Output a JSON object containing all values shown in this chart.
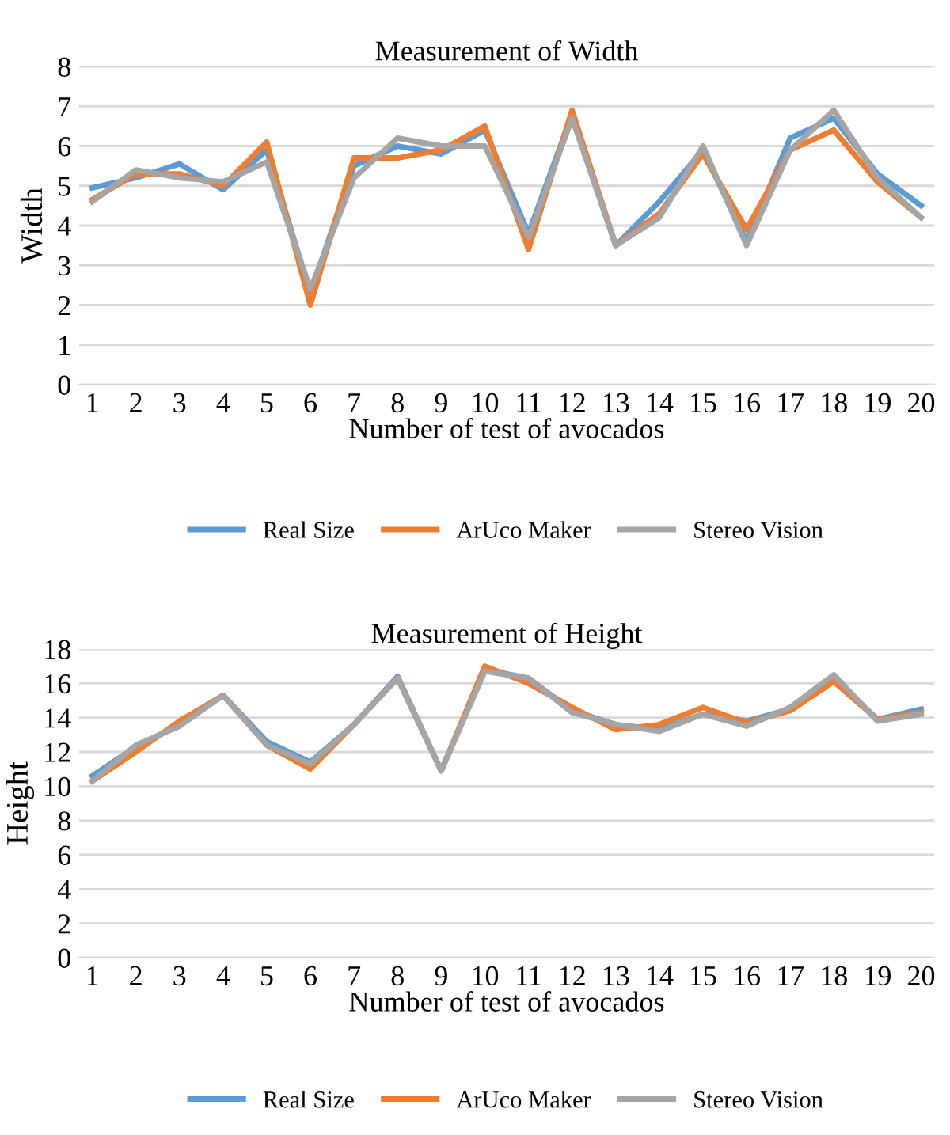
{
  "chart_data": [
    {
      "type": "line",
      "title": "Measurement of Width",
      "xlabel": "Number of test of avocados",
      "ylabel": "Width",
      "categories": [
        "1",
        "2",
        "3",
        "4",
        "5",
        "6",
        "7",
        "8",
        "9",
        "10",
        "11",
        "12",
        "13",
        "14",
        "15",
        "16",
        "17",
        "18",
        "19",
        "20"
      ],
      "series": [
        {
          "name": "Real Size",
          "color": "#5b9bd5",
          "values": [
            4.95,
            5.2,
            5.55,
            4.9,
            5.9,
            2.3,
            5.5,
            6.0,
            5.8,
            6.4,
            3.8,
            6.8,
            3.5,
            4.6,
            5.9,
            3.6,
            6.2,
            6.7,
            5.3,
            4.5
          ]
        },
        {
          "name": "ArUco Maker",
          "color": "#ed7d31",
          "values": [
            4.65,
            5.3,
            5.3,
            5.0,
            6.1,
            2.0,
            5.7,
            5.7,
            5.9,
            6.5,
            3.4,
            6.9,
            3.5,
            4.3,
            5.8,
            3.9,
            5.9,
            6.4,
            5.1,
            4.2
          ]
        },
        {
          "name": "Stereo Vision",
          "color": "#a5a5a5",
          "values": [
            4.6,
            5.4,
            5.2,
            5.1,
            5.6,
            2.4,
            5.2,
            6.2,
            6.0,
            6.0,
            3.7,
            6.7,
            3.5,
            4.2,
            6.0,
            3.5,
            5.9,
            6.9,
            5.2,
            4.2
          ]
        }
      ],
      "ylim": [
        0,
        8
      ],
      "yticks": [
        0,
        1,
        2,
        3,
        4,
        5,
        6,
        7,
        8
      ],
      "grid": "y",
      "legend": "bottom",
      "marker": "none",
      "line_style": "solid"
    },
    {
      "type": "line",
      "title": "Measurement of Height",
      "xlabel": "Number of test of avocados",
      "ylabel": "Height",
      "categories": [
        "1",
        "2",
        "3",
        "4",
        "5",
        "6",
        "7",
        "8",
        "9",
        "10",
        "11",
        "12",
        "13",
        "14",
        "15",
        "16",
        "17",
        "18",
        "19",
        "20"
      ],
      "series": [
        {
          "name": "Real Size",
          "color": "#5b9bd5",
          "values": [
            10.6,
            12.3,
            13.6,
            15.3,
            12.6,
            11.4,
            13.6,
            16.4,
            10.9,
            16.8,
            16.3,
            14.4,
            13.6,
            13.3,
            14.2,
            13.8,
            14.5,
            16.3,
            13.9,
            14.5
          ]
        },
        {
          "name": "ArUco Maker",
          "color": "#ed7d31",
          "values": [
            10.3,
            12.0,
            13.8,
            15.3,
            12.4,
            11.0,
            13.6,
            16.3,
            10.9,
            17.0,
            16.0,
            14.6,
            13.3,
            13.6,
            14.6,
            13.7,
            14.4,
            16.1,
            13.9,
            14.3
          ]
        },
        {
          "name": "Stereo Vision",
          "color": "#a5a5a5",
          "values": [
            10.3,
            12.4,
            13.5,
            15.3,
            12.4,
            11.3,
            13.6,
            16.3,
            10.9,
            16.7,
            16.3,
            14.3,
            13.6,
            13.2,
            14.2,
            13.5,
            14.6,
            16.5,
            13.8,
            14.2
          ]
        }
      ],
      "ylim": [
        0,
        18
      ],
      "yticks": [
        0,
        2,
        4,
        6,
        8,
        10,
        12,
        14,
        16,
        18
      ],
      "grid": "y",
      "legend": "bottom",
      "marker": "none",
      "line_style": "solid"
    }
  ]
}
